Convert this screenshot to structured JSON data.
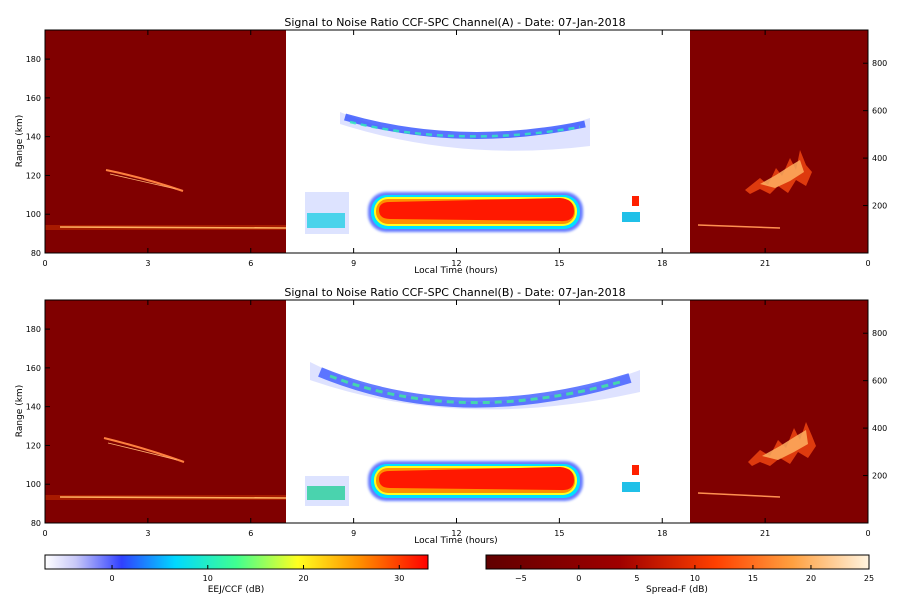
{
  "chart_data": [
    {
      "type": "heatmap",
      "title": "Signal to Noise Ratio CCF-SPC Channel(A) - Date: 07-Jan-2018",
      "xlabel": "Local Time (hours)",
      "ylabel": "Range (km)",
      "xlim": [
        0,
        24
      ],
      "ylim": [
        80,
        195
      ],
      "y2lim": [
        0,
        940
      ],
      "xticks": [
        "0",
        "3",
        "6",
        "9",
        "12",
        "15",
        "18",
        "21",
        "0"
      ],
      "yticks": [
        "80",
        "100",
        "120",
        "140",
        "160",
        "180"
      ],
      "y2ticks": [
        "200",
        "400",
        "600",
        "800"
      ],
      "night_windows_hours": [
        [
          0,
          7.2
        ],
        [
          18.8,
          24
        ]
      ],
      "features": {
        "eej_band": {
          "start_h": 9.7,
          "end_h": 15.6,
          "range_km": [
            95,
            110
          ],
          "peak_db": 31
        },
        "valley_echo": {
          "start_h": 9.5,
          "end_h": 15.6,
          "range_km": [
            135,
            155
          ]
        },
        "early_echo_h": [
          7.5,
          9.0
        ],
        "late_echo_h": [
          17.2,
          17.4
        ],
        "night_layer_km": 93,
        "night_meteor_trail_km": [
          110,
          125
        ],
        "spread_f_h": [
          20.5,
          22.0
        ]
      }
    },
    {
      "type": "heatmap",
      "title": "Signal to Noise Ratio CCF-SPC Channel(B) - Date: 07-Jan-2018",
      "xlabel": "Local Time (hours)",
      "ylabel": "Range (km)",
      "xlim": [
        0,
        24
      ],
      "ylim": [
        80,
        195
      ],
      "y2lim": [
        0,
        940
      ],
      "xticks": [
        "0",
        "3",
        "6",
        "9",
        "12",
        "15",
        "18",
        "21",
        "0"
      ],
      "yticks": [
        "80",
        "100",
        "120",
        "140",
        "160",
        "180"
      ],
      "y2ticks": [
        "200",
        "400",
        "600",
        "800"
      ],
      "night_windows_hours": [
        [
          0,
          7.2
        ],
        [
          18.8,
          24
        ]
      ],
      "features": {
        "eej_band": {
          "start_h": 9.7,
          "end_h": 15.6,
          "range_km": [
            96,
            111
          ],
          "peak_db": 31
        },
        "valley_echo": {
          "start_h": 9.0,
          "end_h": 16.3,
          "range_km": [
            133,
            163
          ]
        },
        "early_echo_h": [
          7.5,
          9.0
        ],
        "late_echo_h": [
          17.2,
          17.4
        ],
        "night_layer_km": 93,
        "night_meteor_trail_km": [
          110,
          125
        ],
        "spread_f_h": [
          20.5,
          22.0
        ]
      }
    }
  ],
  "colorbars": [
    {
      "label": "EEJ/CCF (dB)",
      "ticks": [
        "0",
        "10",
        "20",
        "30"
      ],
      "range": [
        -7,
        33
      ],
      "tick_values": [
        0,
        10,
        20,
        30
      ]
    },
    {
      "label": "Spread-F (dB)",
      "ticks": [
        "−5",
        "0",
        "5",
        "10",
        "15",
        "20",
        "25"
      ],
      "range": [
        -8,
        25
      ],
      "tick_values": [
        -5,
        0,
        5,
        10,
        15,
        20,
        25
      ]
    }
  ],
  "colors": {
    "night_background": "#800000",
    "day_background": "#ffffff",
    "eej_core": "#ff1a00",
    "night_trace": "#ffb060"
  }
}
